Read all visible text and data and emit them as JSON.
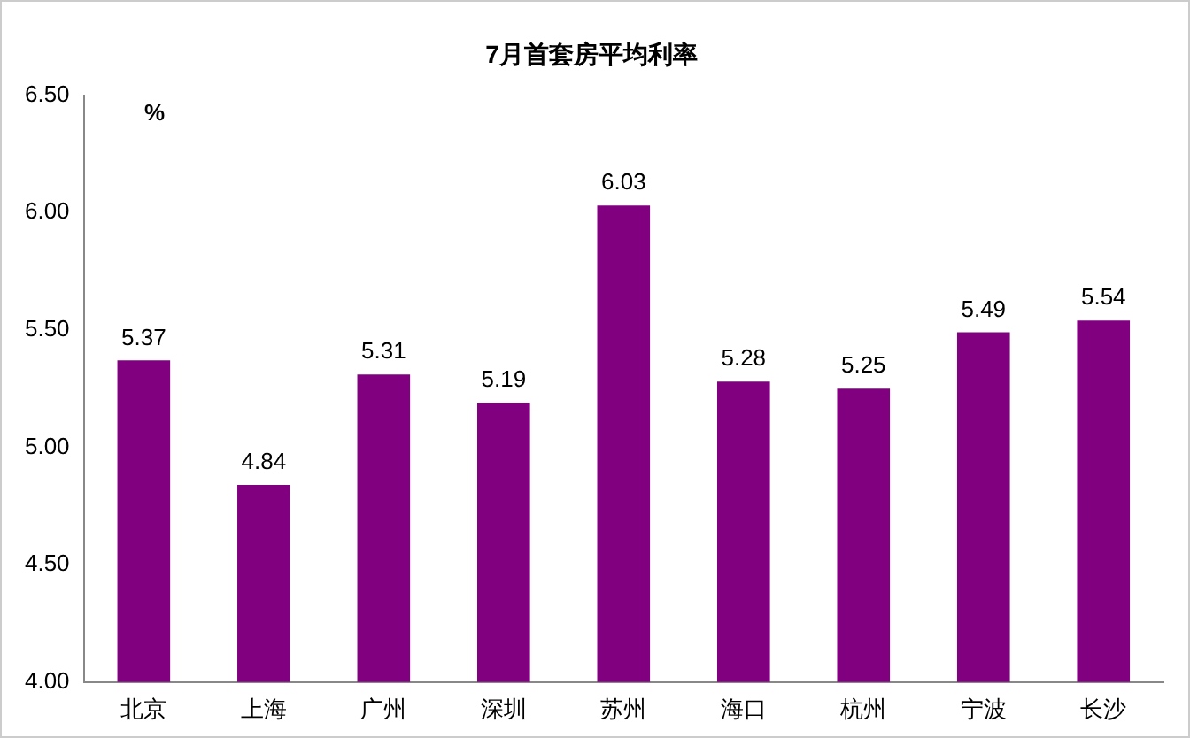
{
  "chart_data": {
    "type": "bar",
    "title": "7月首套房平均利率",
    "ylabel": "%",
    "categories": [
      "北京",
      "上海",
      "广州",
      "深圳",
      "苏州",
      "海口",
      "杭州",
      "宁波",
      "长沙"
    ],
    "values": [
      5.37,
      4.84,
      5.31,
      5.19,
      6.03,
      5.28,
      5.25,
      5.49,
      5.54
    ],
    "color": "#800080",
    "ylim": [
      4,
      6.5
    ],
    "yticks": [
      {
        "value": 4,
        "label": "4.00"
      },
      {
        "value": 4.5,
        "label": "4.50"
      },
      {
        "value": 5,
        "label": "5.00"
      },
      {
        "value": 5.5,
        "label": "5.50"
      },
      {
        "value": 6,
        "label": "6.00"
      },
      {
        "value": 6.5,
        "label": "6.50"
      }
    ],
    "grid": false,
    "legend": false,
    "data_labels": true
  }
}
